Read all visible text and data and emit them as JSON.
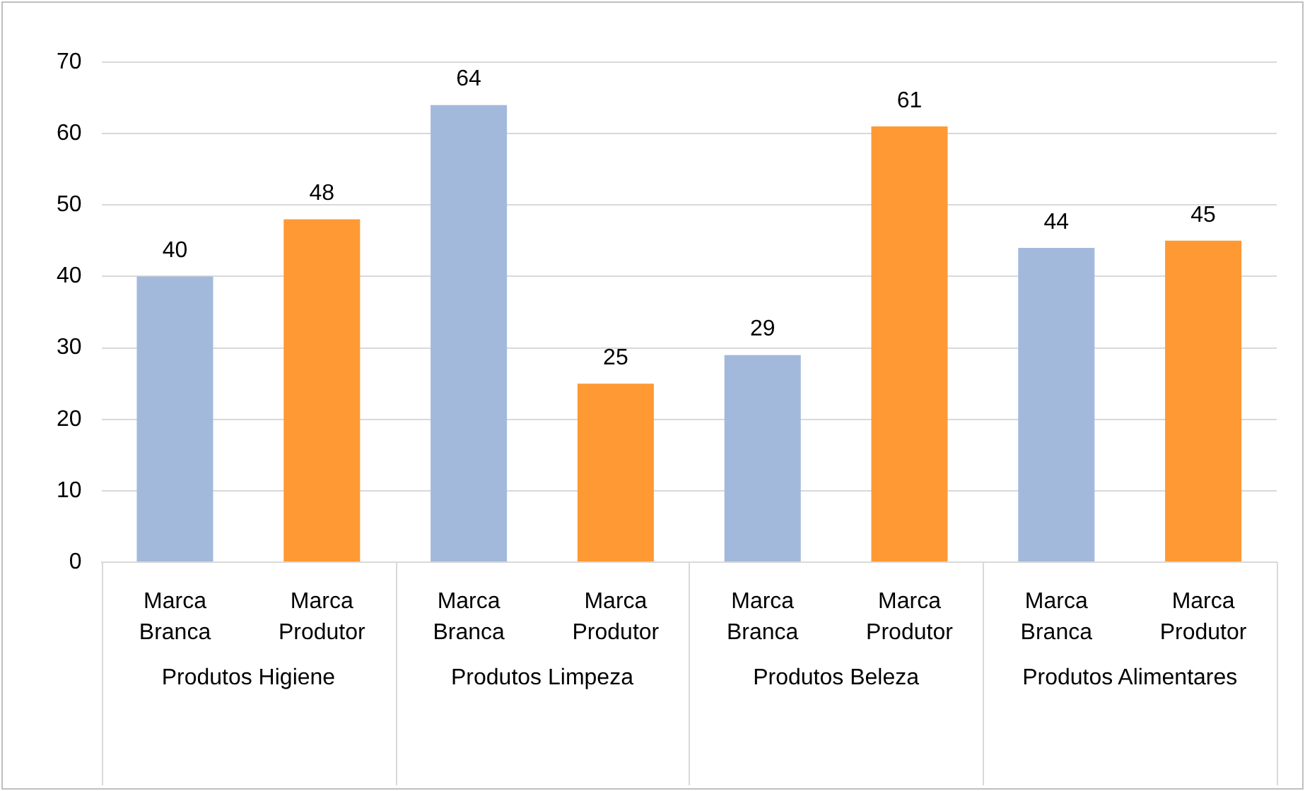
{
  "chart_data": {
    "type": "bar",
    "categories": [
      "Produtos Higiene",
      "Produtos Limpeza",
      "Produtos Beleza",
      "Produtos Alimentares"
    ],
    "series": [
      {
        "name": "Marca Branca",
        "color": "#a3b9dc",
        "values": [
          40,
          64,
          29,
          44
        ]
      },
      {
        "name": "Marca Produtor",
        "color": "#ff9933",
        "values": [
          48,
          25,
          61,
          45
        ]
      }
    ],
    "ylim": [
      0,
      70
    ],
    "yticks": [
      0,
      10,
      20,
      30,
      40,
      50,
      60,
      70
    ],
    "grid": "y",
    "legend": false,
    "data_labels": true
  }
}
